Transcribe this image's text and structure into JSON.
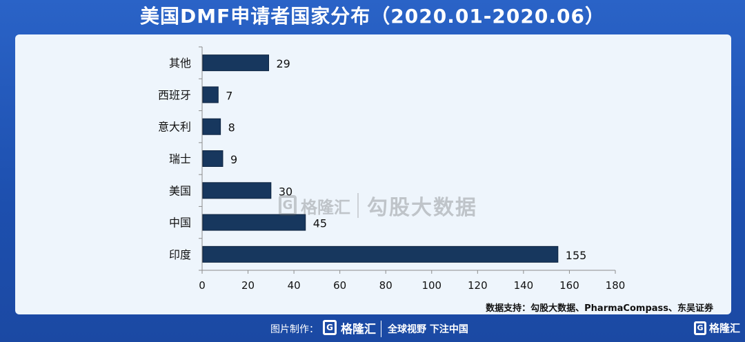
{
  "header": {
    "title": "美国DMF申请者国家分布（2020.01-2020.06）"
  },
  "chart_data": {
    "type": "bar",
    "orientation": "horizontal",
    "title": "美国DMF申请者国家分布（2020.01-2020.06）",
    "categories": [
      "其他",
      "西班牙",
      "意大利",
      "瑞士",
      "美国",
      "中国",
      "印度"
    ],
    "values": [
      29,
      7,
      8,
      9,
      30,
      45,
      155
    ],
    "xlim": [
      0,
      180
    ],
    "xticks": [
      0,
      20,
      40,
      60,
      80,
      100,
      120,
      140,
      160,
      180
    ],
    "bar_color": "#17375e",
    "data_labels": true,
    "grid": false,
    "legend": "none"
  },
  "watermark": {
    "brand": "格隆汇",
    "logo_letter": "G",
    "tagline": "勾股大数据"
  },
  "source": "数据支持：勾股大数据、PharmaCompass、东吴证券",
  "footer": {
    "credit": "图片制作：",
    "logo_letter": "G",
    "brand": "格隆汇",
    "slogan": "全球视野 下注中国",
    "corner_brand": "格隆汇"
  },
  "colors": {
    "background": "#1f56b8",
    "panel": "#eef5fc",
    "bar": "#17375e"
  }
}
